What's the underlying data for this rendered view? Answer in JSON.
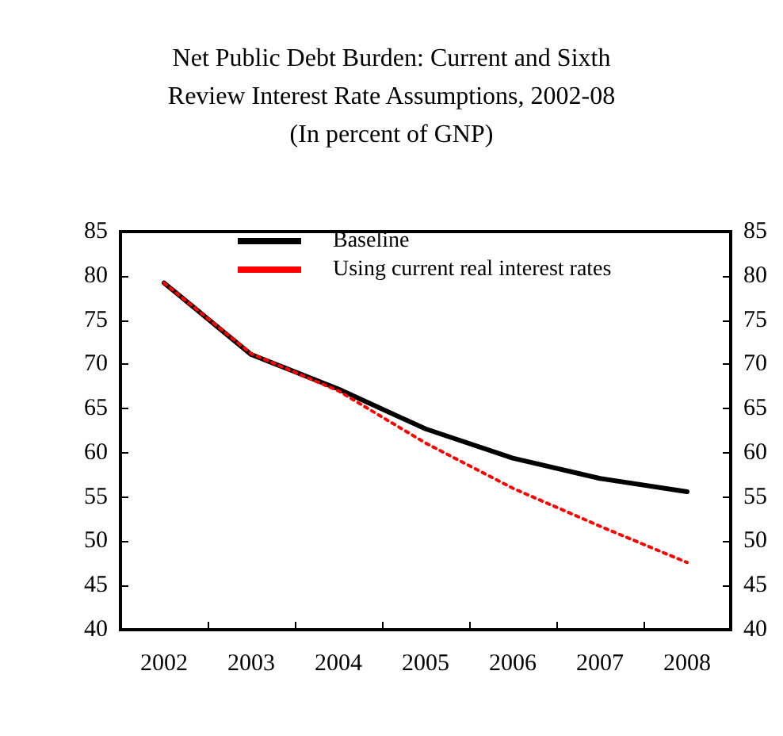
{
  "chart_data": {
    "type": "line",
    "title": "Net Public Debt Burden: Current and Sixth\nReview Interest Rate Assumptions, 2002-08\n(In percent of GNP)",
    "categories": [
      "2002",
      "2003",
      "2004",
      "2005",
      "2006",
      "2007",
      "2008"
    ],
    "series": [
      {
        "name": "Baseline",
        "color": "#000000",
        "line_style": "solid",
        "values": [
          79.2,
          71.1,
          67.2,
          62.7,
          59.4,
          57.1,
          55.6
        ]
      },
      {
        "name": "Using current real interest rates",
        "color": "#ff0000",
        "line_style": "dotted",
        "values": [
          79.2,
          71.2,
          67.0,
          61.1,
          56.0,
          51.7,
          47.6
        ]
      }
    ],
    "ylim": [
      40,
      85
    ],
    "yticks": [
      40,
      45,
      50,
      55,
      60,
      65,
      70,
      75,
      80,
      85
    ],
    "y2lim": [
      40,
      85
    ],
    "y2ticks": [
      40,
      45,
      50,
      55,
      60,
      65,
      70,
      75,
      80,
      85
    ],
    "grid": false,
    "legend": "top",
    "marker": "none"
  }
}
